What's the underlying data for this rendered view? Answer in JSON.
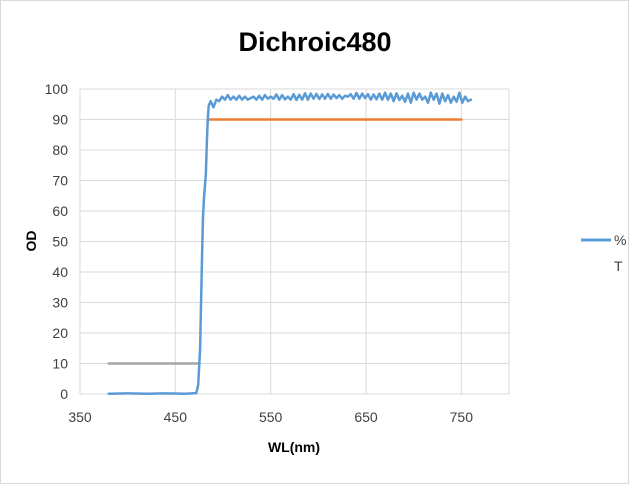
{
  "chart_data": {
    "type": "line",
    "title": "Dichroic480",
    "xlabel": "WL(nm)",
    "ylabel": "OD",
    "xlim": [
      350,
      800
    ],
    "ylim": [
      0,
      100
    ],
    "x_ticks": [
      350,
      450,
      550,
      650,
      750
    ],
    "y_ticks": [
      0,
      10,
      20,
      30,
      40,
      50,
      60,
      70,
      80,
      90,
      100
    ],
    "grid": true,
    "legend_position": "right",
    "legend_lines": [
      "%",
      "T"
    ],
    "series": [
      {
        "name": "%T",
        "color": "#5b9bd5",
        "x": [
          380,
          400,
          420,
          440,
          460,
          472,
          474,
          476,
          477,
          478,
          479,
          480,
          481,
          482,
          483,
          484,
          485,
          487,
          490,
          493,
          496,
          499,
          502,
          505,
          508,
          511,
          514,
          517,
          520,
          523,
          526,
          529,
          532,
          535,
          538,
          541,
          544,
          547,
          550,
          553,
          556,
          559,
          562,
          565,
          568,
          571,
          574,
          577,
          580,
          583,
          586,
          589,
          592,
          595,
          598,
          601,
          604,
          607,
          610,
          613,
          616,
          619,
          622,
          625,
          628,
          631,
          634,
          637,
          640,
          643,
          646,
          649,
          652,
          655,
          658,
          661,
          664,
          667,
          670,
          673,
          676,
          679,
          682,
          685,
          688,
          691,
          694,
          697,
          700,
          703,
          706,
          709,
          712,
          715,
          718,
          721,
          724,
          727,
          730,
          733,
          736,
          739,
          742,
          745,
          748,
          751,
          754,
          757,
          760
        ],
        "y": [
          0.1,
          0.2,
          0.1,
          0.2,
          0.1,
          0.3,
          3,
          15,
          30,
          45,
          58,
          64,
          68,
          72,
          82,
          90,
          94.5,
          96,
          94,
          96.5,
          96,
          97.5,
          96.5,
          98,
          96.5,
          97.5,
          96.5,
          97.8,
          96.5,
          97.5,
          96.5,
          97,
          97.5,
          96.5,
          97.8,
          96.5,
          98,
          96.8,
          97.5,
          96.8,
          98.2,
          96.5,
          98,
          96.6,
          97.5,
          96.5,
          98.3,
          96.4,
          98.1,
          96.5,
          98.6,
          96.5,
          98.5,
          96.8,
          98.4,
          96.7,
          98.2,
          96.8,
          98.4,
          96.8,
          98.2,
          97,
          98,
          96.8,
          97.8,
          97.5,
          98.3,
          96.8,
          98.7,
          96.8,
          98.5,
          97,
          98.3,
          96.5,
          98.2,
          96.6,
          98.5,
          96.5,
          98.8,
          96.5,
          98.5,
          96,
          98.6,
          96.4,
          97.8,
          95.8,
          98.5,
          95.5,
          98.8,
          96.5,
          98.5,
          96.5,
          97.5,
          95.5,
          98.8,
          96.5,
          98.5,
          95.2,
          98.5,
          96,
          98,
          95.5,
          97.5,
          95.8,
          98.8,
          95.5,
          97.5,
          96,
          96.5
        ]
      },
      {
        "name": "",
        "color": "#ed7d31",
        "x": [
          485,
          750
        ],
        "y": [
          90,
          90
        ]
      },
      {
        "name": "",
        "color": "#a5a5a5",
        "x": [
          380,
          475
        ],
        "y": [
          10,
          10
        ]
      }
    ]
  }
}
